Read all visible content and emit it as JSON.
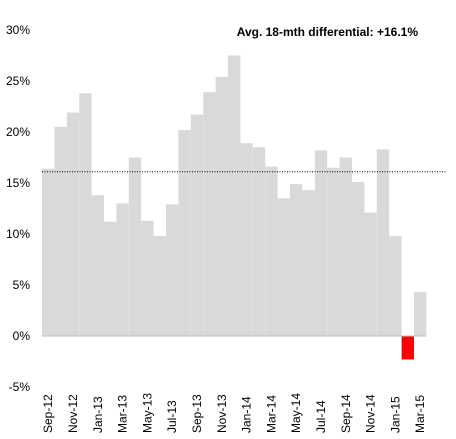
{
  "chart_data": {
    "type": "bar",
    "title": "",
    "xlabel": "",
    "ylabel": "",
    "ylim": [
      -5,
      30
    ],
    "yticks": [
      "30%",
      "25%",
      "20%",
      "15%",
      "10%",
      "5%",
      "0%",
      "-5%"
    ],
    "ytick_values": [
      30,
      25,
      20,
      15,
      10,
      5,
      0,
      -5
    ],
    "annotation": "Avg. 18-mth differential: +16.1%",
    "reference_line": {
      "value": 16.1,
      "style": "dotted"
    },
    "categories": [
      "Sep-12",
      "Oct-12",
      "Nov-12",
      "Dec-12",
      "Jan-13",
      "Feb-13",
      "Mar-13",
      "Apr-13",
      "May-13",
      "Jun-13",
      "Jul-13",
      "Aug-13",
      "Sep-13",
      "Oct-13",
      "Nov-13",
      "Dec-13",
      "Jan-14",
      "Feb-14",
      "Mar-14",
      "Apr-14",
      "May-14",
      "Jun-14",
      "Jul-14",
      "Aug-14",
      "Sep-14",
      "Oct-14",
      "Nov-14",
      "Dec-14",
      "Jan-15",
      "Feb-15",
      "Mar-15"
    ],
    "xtick_labels": [
      "Sep-12",
      "Nov-12",
      "Jan-13",
      "Mar-13",
      "May-13",
      "Jul-13",
      "Sep-13",
      "Nov-13",
      "Jan-14",
      "Mar-14",
      "May-14",
      "Jul-14",
      "Sep-14",
      "Nov-14",
      "Jan-15",
      "Mar-15"
    ],
    "values": [
      16.4,
      20.5,
      21.9,
      23.8,
      13.8,
      11.2,
      13.0,
      17.5,
      11.3,
      9.8,
      12.9,
      20.2,
      21.7,
      23.9,
      25.4,
      27.5,
      18.9,
      18.5,
      16.6,
      13.5,
      14.9,
      14.3,
      18.2,
      16.5,
      17.5,
      15.1,
      12.1,
      18.3,
      9.8,
      -2.3,
      4.3
    ],
    "bar_color": "#d9d9d9",
    "negative_bar_color": "#ff0000",
    "grid": false,
    "legend": "none"
  }
}
